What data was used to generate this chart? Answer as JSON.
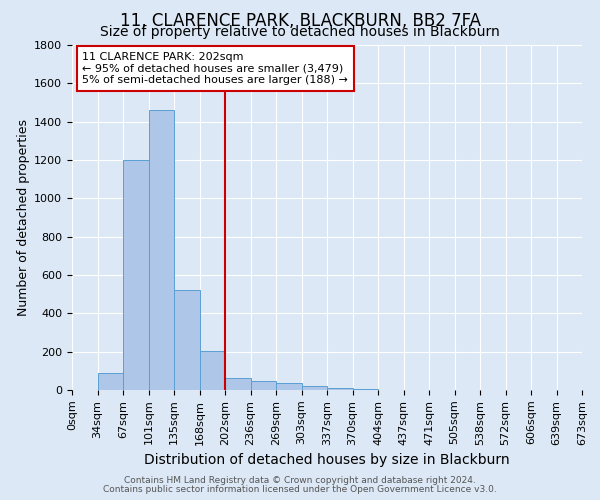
{
  "title1": "11, CLARENCE PARK, BLACKBURN, BB2 7FA",
  "title2": "Size of property relative to detached houses in Blackburn",
  "xlabel": "Distribution of detached houses by size in Blackburn",
  "ylabel": "Number of detached properties",
  "footnote1": "Contains HM Land Registry data © Crown copyright and database right 2024.",
  "footnote2": "Contains public sector information licensed under the Open Government Licence v3.0.",
  "bin_labels": [
    "0sqm",
    "34sqm",
    "67sqm",
    "101sqm",
    "135sqm",
    "168sqm",
    "202sqm",
    "236sqm",
    "269sqm",
    "303sqm",
    "337sqm",
    "370sqm",
    "404sqm",
    "437sqm",
    "471sqm",
    "505sqm",
    "538sqm",
    "572sqm",
    "606sqm",
    "639sqm",
    "673sqm"
  ],
  "bar_values": [
    0,
    91,
    1200,
    1463,
    524,
    204,
    63,
    47,
    38,
    21,
    9,
    5,
    0,
    0,
    0,
    0,
    0,
    0,
    0,
    0
  ],
  "bar_color": "#aec6e8",
  "bar_edge_color": "#5a9fd4",
  "vline_x": 6.0,
  "vline_color": "#cc0000",
  "annotation_text": "11 CLARENCE PARK: 202sqm\n← 95% of detached houses are smaller (3,479)\n5% of semi-detached houses are larger (188) →",
  "annotation_box_color": "#ffffff",
  "annotation_border_color": "#cc0000",
  "ylim": [
    0,
    1800
  ],
  "yticks": [
    0,
    200,
    400,
    600,
    800,
    1000,
    1200,
    1400,
    1600,
    1800
  ],
  "bg_color": "#dce8f5",
  "plot_bg_color": "#dce8f5",
  "grid_color": "#ffffff",
  "title1_fontsize": 12,
  "title2_fontsize": 10,
  "xlabel_fontsize": 10,
  "ylabel_fontsize": 9,
  "tick_fontsize": 8,
  "footnote_fontsize": 6.5,
  "annotation_fontsize": 8
}
